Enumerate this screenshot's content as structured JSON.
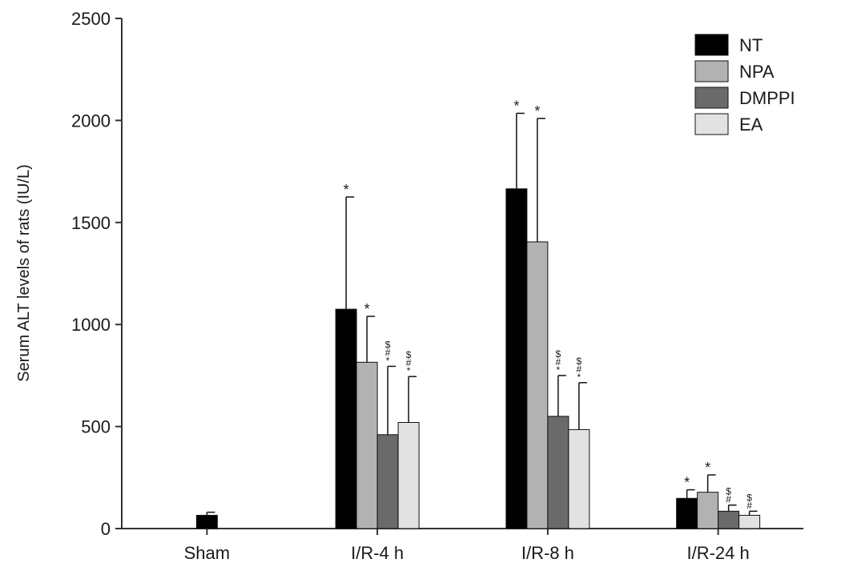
{
  "chart_data": {
    "type": "bar",
    "ylabel": "Serum ALT levels of rats (IU/L)",
    "ylim": [
      0,
      2500
    ],
    "yticks": [
      0,
      500,
      1000,
      1500,
      2000,
      2500
    ],
    "categories": [
      "Sham",
      "I/R-4 h",
      "I/R-8 h",
      "I/R-24 h"
    ],
    "legend_position": "top-right",
    "grid": false,
    "series": [
      {
        "name": "NT",
        "color": "#000000",
        "values": [
          65,
          1075,
          1665,
          148
        ],
        "errors": [
          15,
          550,
          370,
          42
        ],
        "annotations": [
          "",
          "*",
          "*",
          "*"
        ]
      },
      {
        "name": "NPA",
        "color": "#b2b2b2",
        "values": [
          null,
          815,
          1405,
          178
        ],
        "errors": [
          null,
          225,
          605,
          85
        ],
        "annotations": [
          "",
          "*",
          "*",
          "*"
        ]
      },
      {
        "name": "DMPPI",
        "color": "#6a6a6a",
        "values": [
          null,
          460,
          550,
          85
        ],
        "errors": [
          null,
          335,
          200,
          30
        ],
        "annotations": [
          "",
          "$\n#\n*",
          "$\n#\n*",
          "$\n#"
        ]
      },
      {
        "name": "EA",
        "color": "#e2e2e2",
        "values": [
          null,
          520,
          485,
          65
        ],
        "errors": [
          null,
          225,
          230,
          20
        ],
        "annotations": [
          "",
          "$\n#\n*",
          "$\n#\n*",
          "$\n#"
        ]
      }
    ]
  }
}
